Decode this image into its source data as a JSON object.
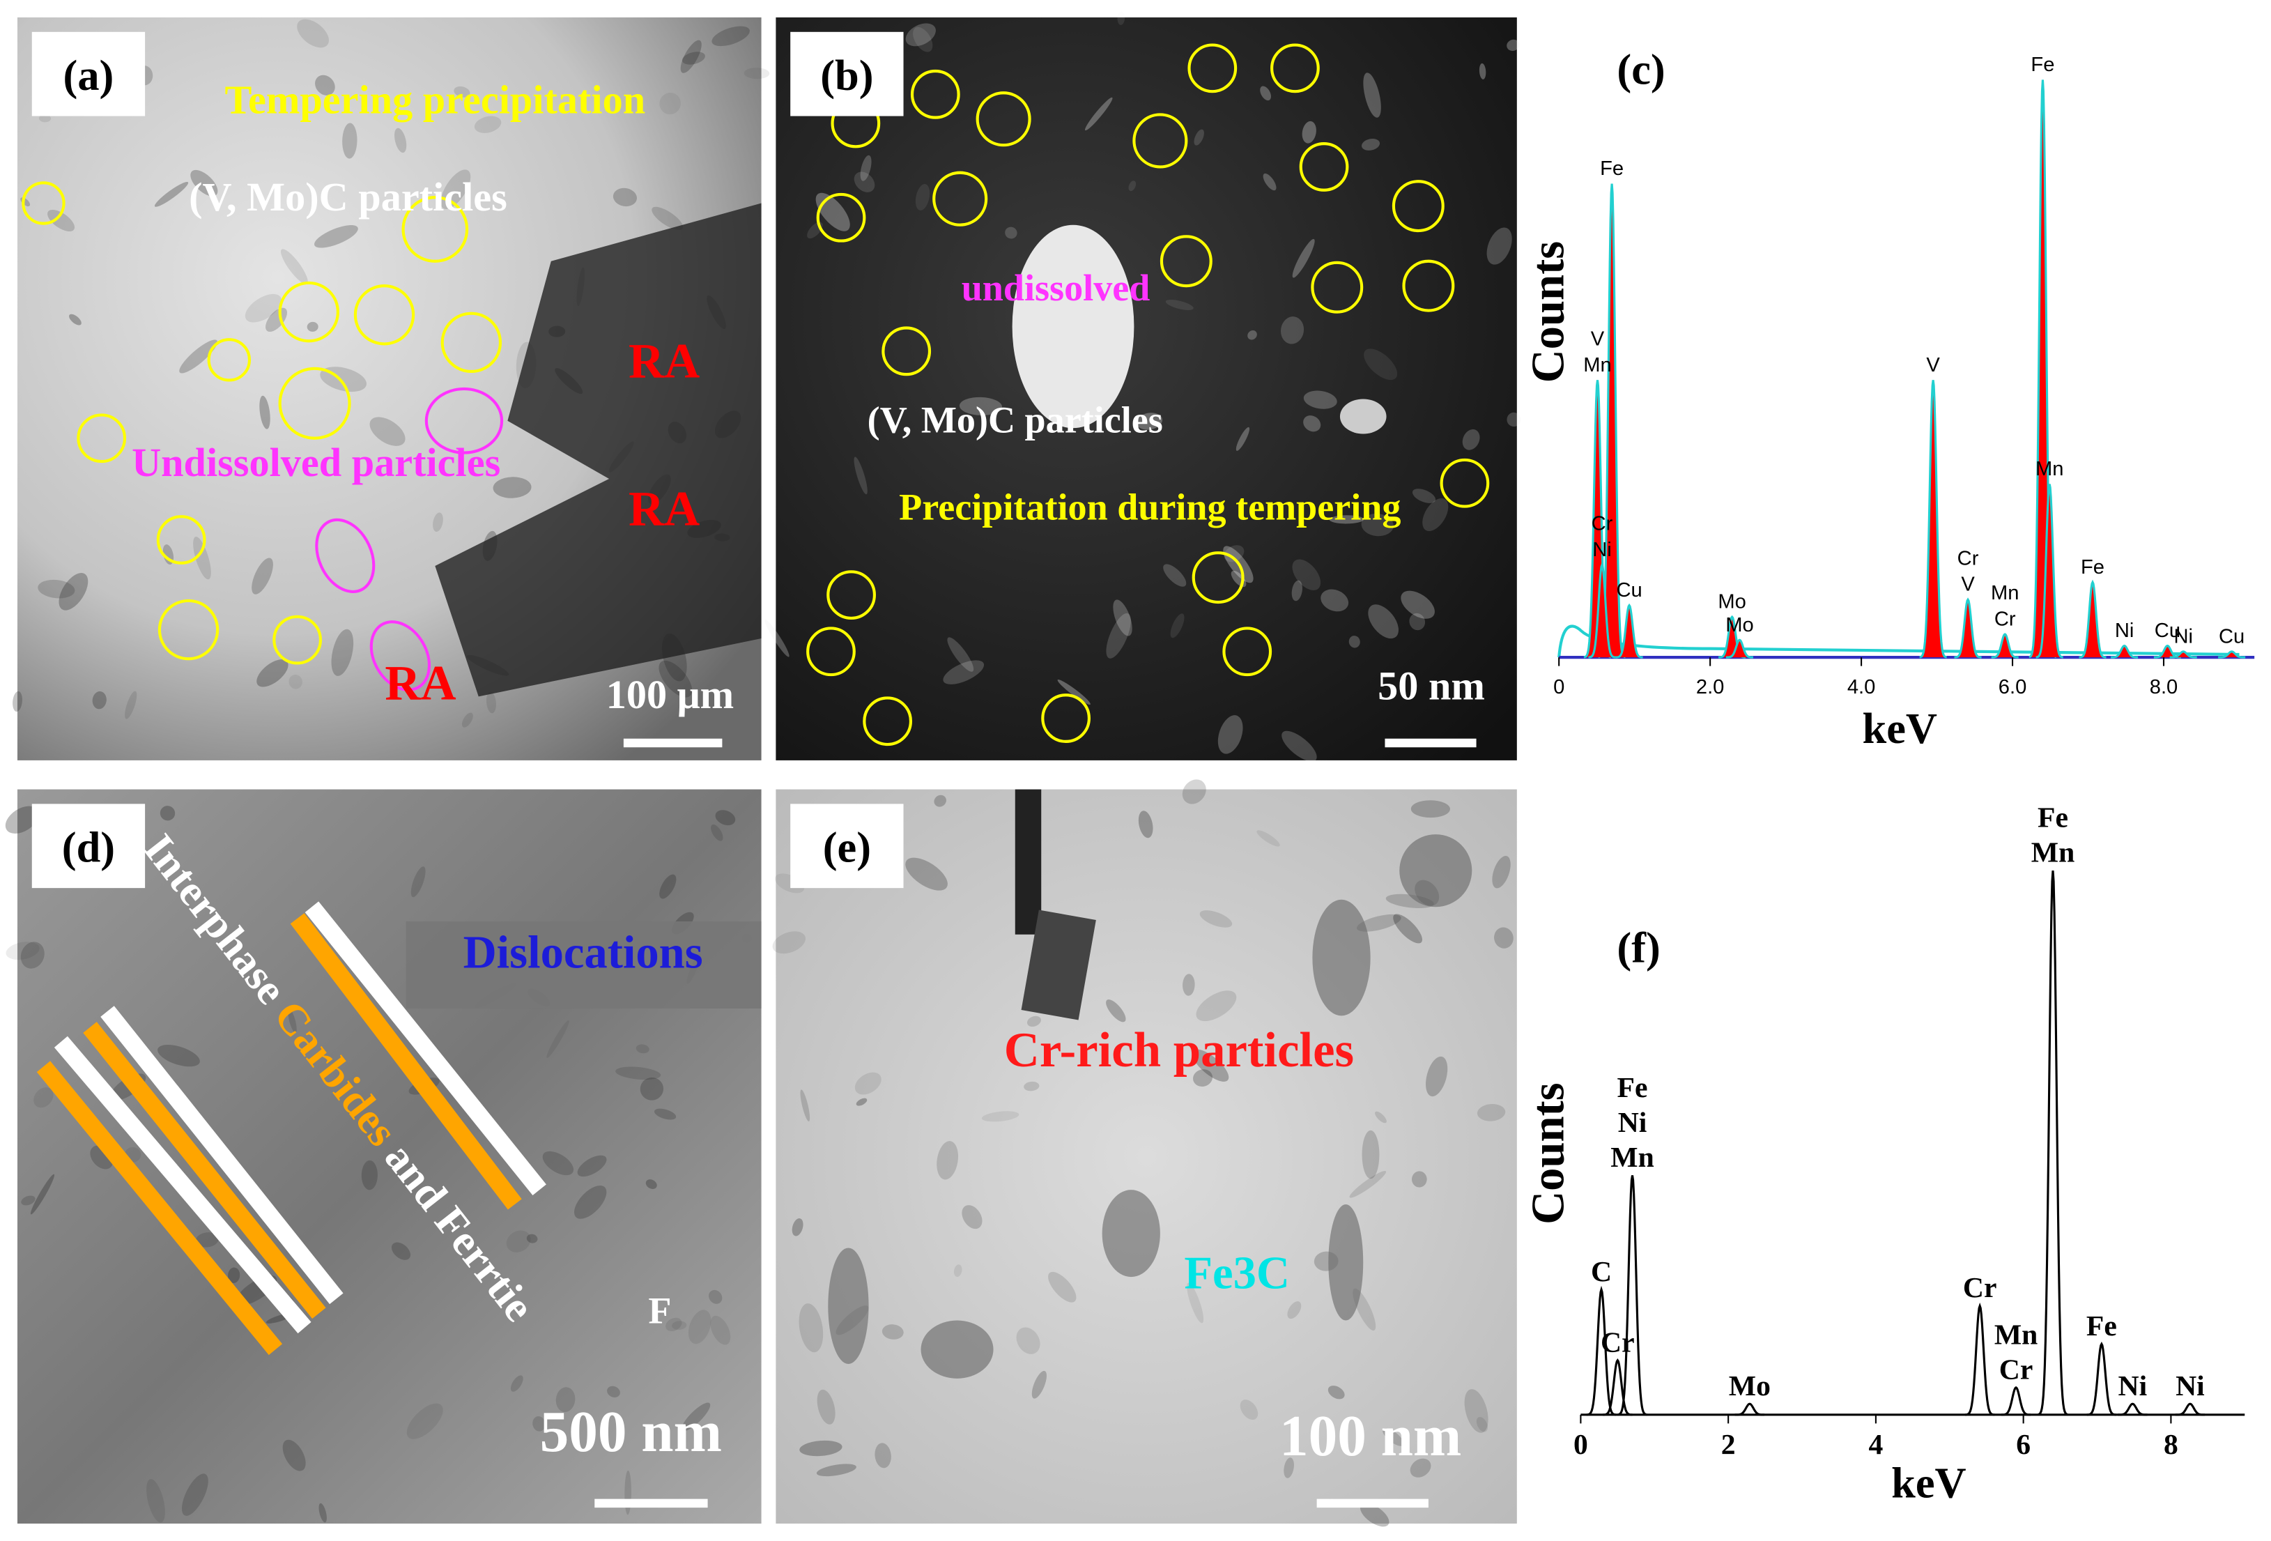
{
  "panels": [
    {
      "label": "(a)",
      "texts": [
        {
          "text": "Tempering precipitation",
          "color": "#ffff00"
        },
        {
          "text": "(V, Mo)C particles",
          "color": "#ffffff"
        },
        {
          "text": "Undissolved particles",
          "color": "#ff33ff"
        },
        {
          "text": "RA",
          "color": "#ff0000"
        },
        {
          "text": "RA",
          "color": "#ff0000"
        },
        {
          "text": "RA",
          "color": "#ff0000"
        }
      ],
      "scale_bar": "100 μm"
    },
    {
      "label": "(b)",
      "texts": [
        {
          "text": "undissolved",
          "color": "#ff33ff"
        },
        {
          "text": "(V, Mo)C particles",
          "color": "#ffffff"
        },
        {
          "text": "Precipitation during tempering",
          "color": "#ffff00"
        }
      ],
      "scale_bar": "50 nm"
    },
    {
      "label": "(d)",
      "texts": [
        {
          "text": "Interphase",
          "color": "#ffffff"
        },
        {
          "text": "Carbides",
          "color": "#ffa500"
        },
        {
          "text": "and Ferrtie",
          "color": "#ffffff"
        },
        {
          "text": "Dislocations",
          "color": "#1c1cd8"
        },
        {
          "text": "F",
          "color": "#ffffff"
        }
      ],
      "scale_bar": "500 nm"
    },
    {
      "label": "(e)",
      "texts": [
        {
          "text": "Cr-rich particles",
          "color": "#ff1a1a"
        },
        {
          "text": "Fe3C",
          "color": "#00e5e5"
        }
      ],
      "scale_bar": "100 nm"
    }
  ],
  "spectra": [
    {
      "label": "(c)",
      "ylabel": "Counts",
      "xlabel": "keV",
      "xlim": [
        0,
        9.2
      ],
      "xticks": [
        {
          "value": 0,
          "label": "0"
        },
        {
          "value": 2,
          "label": "2.0"
        },
        {
          "value": 4,
          "label": "4.0"
        },
        {
          "value": 6,
          "label": "6.0"
        },
        {
          "value": 8,
          "label": "8.0"
        }
      ],
      "fill": "#ff0000",
      "line": "#22d0d0",
      "peaks": [
        {
          "kev": 0.7,
          "height": 82,
          "labels": [
            "Fe"
          ]
        },
        {
          "kev": 0.51,
          "height": 48,
          "labels": [
            "V",
            "Mn"
          ]
        },
        {
          "kev": 0.57,
          "height": 16,
          "labels": [
            "Cr",
            "Ni"
          ]
        },
        {
          "kev": 0.93,
          "height": 9,
          "labels": [
            "Cu"
          ]
        },
        {
          "kev": 2.29,
          "height": 7,
          "labels": [
            "Mo"
          ]
        },
        {
          "kev": 2.39,
          "height": 3,
          "labels": [
            "Mo"
          ]
        },
        {
          "kev": 4.95,
          "height": 48,
          "labels": [
            "V"
          ]
        },
        {
          "kev": 5.41,
          "height": 10,
          "labels": [
            "Cr",
            "V"
          ]
        },
        {
          "kev": 5.9,
          "height": 4,
          "labels": [
            "Mn",
            "Cr"
          ]
        },
        {
          "kev": 6.4,
          "height": 100,
          "labels": [
            "Fe"
          ]
        },
        {
          "kev": 6.49,
          "height": 30,
          "labels": [
            "Mn"
          ]
        },
        {
          "kev": 7.06,
          "height": 13,
          "labels": [
            "Fe"
          ]
        },
        {
          "kev": 7.48,
          "height": 2,
          "labels": [
            "Ni"
          ]
        },
        {
          "kev": 8.05,
          "height": 2,
          "labels": [
            "Cu"
          ]
        },
        {
          "kev": 8.26,
          "height": 1,
          "labels": [
            "Ni"
          ]
        },
        {
          "kev": 8.9,
          "height": 1,
          "labels": [
            "Cu"
          ]
        }
      ]
    },
    {
      "label": "(f)",
      "ylabel": "Counts",
      "xlabel": "keV",
      "xlim": [
        0,
        9
      ],
      "xticks": [
        0,
        2,
        4,
        6,
        8
      ],
      "fill": "none",
      "line": "#000000",
      "peaks": [
        {
          "kev": 0.28,
          "height": 23,
          "labels": [
            "C"
          ]
        },
        {
          "kev": 0.5,
          "height": 10,
          "labels": [
            "Cr"
          ]
        },
        {
          "kev": 0.7,
          "height": 44,
          "labels": [
            "Fe",
            "Ni",
            "Mn"
          ]
        },
        {
          "kev": 2.29,
          "height": 2,
          "labels": [
            "Mo"
          ]
        },
        {
          "kev": 5.41,
          "height": 20,
          "labels": [
            "Cr"
          ]
        },
        {
          "kev": 5.9,
          "height": 5,
          "labels": [
            "Mn",
            "Cr"
          ]
        },
        {
          "kev": 6.4,
          "height": 100,
          "labels": [
            "Fe",
            "Mn"
          ]
        },
        {
          "kev": 7.06,
          "height": 13,
          "labels": [
            "Fe"
          ]
        },
        {
          "kev": 7.48,
          "height": 2,
          "labels": [
            "Ni"
          ]
        },
        {
          "kev": 8.26,
          "height": 2,
          "labels": [
            "Ni"
          ]
        }
      ]
    }
  ]
}
